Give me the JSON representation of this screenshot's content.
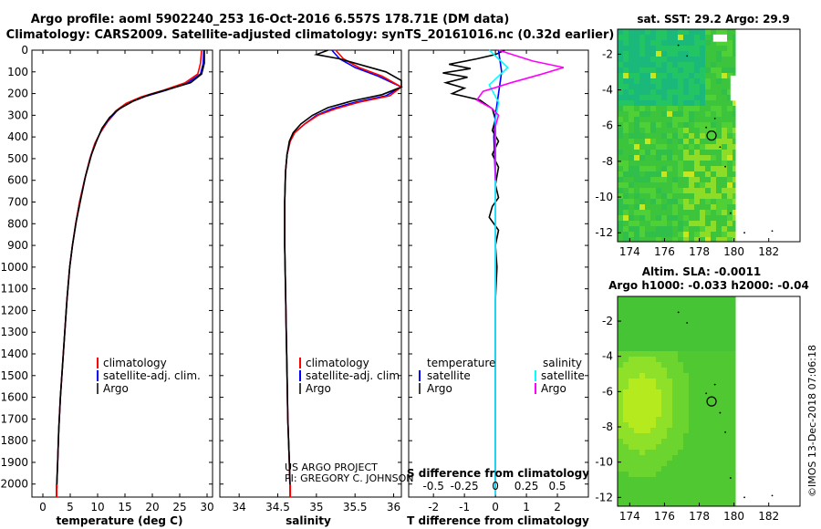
{
  "titles": {
    "line1": "Argo profile: aoml 5902240_253 16-Oct-2016 6.557S 178.71E (DM data)",
    "line2": "Climatology: CARS2009. Satellite-adjusted climatology: synTS_20161016.nc (0.32d earlier)"
  },
  "colors": {
    "climatology": "#ff0000",
    "satellite": "#0000ff",
    "argo": "#000000",
    "sat_sal": "#00ffff",
    "argo_sal": "#ff00ff"
  },
  "chart_data": [
    {
      "type": "line",
      "name": "temperature",
      "xlabel": "temperature (deg C)",
      "xlim": [
        -2,
        31
      ],
      "xticks": [
        0,
        5,
        10,
        15,
        20,
        25,
        30
      ],
      "ylim": [
        0,
        2060
      ],
      "yticks": [
        0,
        100,
        200,
        300,
        400,
        500,
        600,
        700,
        800,
        900,
        1000,
        1100,
        1200,
        1300,
        1400,
        1500,
        1600,
        1700,
        1800,
        1900,
        2000
      ],
      "legend": [
        "climatology",
        "satellite-adj. clim.",
        "Argo"
      ],
      "series": [
        {
          "name": "satellite-adj. clim.",
          "points": [
            [
              29.4,
              0
            ],
            [
              29.3,
              60
            ],
            [
              28.8,
              110
            ],
            [
              26.5,
              150
            ],
            [
              22.5,
              185
            ],
            [
              18.5,
              215
            ],
            [
              15.5,
              245
            ],
            [
              13.5,
              280
            ],
            [
              11.8,
              330
            ],
            [
              10.5,
              380
            ],
            [
              9.5,
              430
            ],
            [
              8.6,
              500
            ],
            [
              7.6,
              600
            ],
            [
              6.7,
              700
            ],
            [
              6.0,
              800
            ],
            [
              5.4,
              900
            ],
            [
              4.9,
              1000
            ],
            [
              4.4,
              1150
            ],
            [
              4.0,
              1300
            ],
            [
              3.6,
              1450
            ],
            [
              3.2,
              1600
            ],
            [
              2.9,
              1750
            ],
            [
              2.7,
              1900
            ],
            [
              2.5,
              2050
            ]
          ]
        },
        {
          "name": "climatology",
          "points": [
            [
              29.0,
              0
            ],
            [
              28.8,
              60
            ],
            [
              28.3,
              110
            ],
            [
              26.0,
              150
            ],
            [
              22.0,
              185
            ],
            [
              18.0,
              215
            ],
            [
              15.2,
              245
            ],
            [
              13.3,
              280
            ],
            [
              11.7,
              330
            ],
            [
              10.5,
              380
            ],
            [
              9.5,
              430
            ],
            [
              8.6,
              500
            ],
            [
              7.6,
              600
            ],
            [
              6.7,
              700
            ],
            [
              6.0,
              800
            ],
            [
              5.4,
              900
            ],
            [
              4.9,
              1000
            ],
            [
              4.4,
              1150
            ],
            [
              4.0,
              1300
            ],
            [
              3.6,
              1450
            ],
            [
              3.2,
              1600
            ],
            [
              2.9,
              1750
            ],
            [
              2.7,
              1900
            ],
            [
              2.5,
              2050
            ]
          ]
        },
        {
          "name": "Argo",
          "points": [
            [
              29.5,
              0
            ],
            [
              29.5,
              60
            ],
            [
              29.0,
              110
            ],
            [
              27.0,
              150
            ],
            [
              23.0,
              180
            ],
            [
              19.5,
              205
            ],
            [
              16.5,
              235
            ],
            [
              14.0,
              270
            ],
            [
              12.2,
              310
            ],
            [
              10.8,
              360
            ],
            [
              9.8,
              420
            ],
            [
              8.9,
              480
            ],
            [
              7.8,
              580
            ],
            [
              6.9,
              690
            ],
            [
              6.1,
              790
            ],
            [
              5.4,
              900
            ],
            [
              4.9,
              1000
            ],
            [
              4.4,
              1150
            ],
            [
              4.0,
              1300
            ],
            [
              3.6,
              1450
            ],
            [
              3.2,
              1600
            ],
            [
              2.9,
              1750
            ],
            [
              2.7,
              1900
            ],
            [
              2.5,
              2020
            ]
          ]
        }
      ]
    },
    {
      "type": "line",
      "name": "salinity",
      "xlabel": "salinity",
      "xlim": [
        33.75,
        36.1
      ],
      "xticks": [
        34,
        34.5,
        35,
        35.5,
        36
      ],
      "ylim": [
        0,
        2060
      ],
      "legend": [
        "climatology",
        "satellite-adj. clim.",
        "Argo"
      ],
      "credit": [
        "US ARGO PROJECT",
        "PI: GREGORY C. JOHNSON"
      ],
      "series": [
        {
          "name": "satellite-adj. clim.",
          "points": [
            [
              35.2,
              0
            ],
            [
              35.3,
              40
            ],
            [
              35.5,
              80
            ],
            [
              35.8,
              120
            ],
            [
              36.1,
              170
            ],
            [
              35.9,
              210
            ],
            [
              35.5,
              240
            ],
            [
              35.2,
              270
            ],
            [
              35.0,
              300
            ],
            [
              34.85,
              340
            ],
            [
              34.72,
              380
            ],
            [
              34.66,
              420
            ],
            [
              34.62,
              480
            ],
            [
              34.6,
              560
            ],
            [
              34.59,
              700
            ],
            [
              34.59,
              900
            ],
            [
              34.6,
              1100
            ],
            [
              34.61,
              1300
            ],
            [
              34.62,
              1500
            ],
            [
              34.63,
              1700
            ],
            [
              34.65,
              1900
            ],
            [
              34.66,
              2050
            ]
          ]
        },
        {
          "name": "climatology",
          "points": [
            [
              35.25,
              0
            ],
            [
              35.35,
              40
            ],
            [
              35.55,
              80
            ],
            [
              35.85,
              120
            ],
            [
              36.1,
              170
            ],
            [
              35.95,
              210
            ],
            [
              35.55,
              240
            ],
            [
              35.25,
              270
            ],
            [
              35.02,
              300
            ],
            [
              34.85,
              340
            ],
            [
              34.72,
              380
            ],
            [
              34.66,
              420
            ],
            [
              34.62,
              480
            ],
            [
              34.6,
              560
            ],
            [
              34.59,
              700
            ],
            [
              34.59,
              900
            ],
            [
              34.6,
              1100
            ],
            [
              34.61,
              1300
            ],
            [
              34.62,
              1500
            ],
            [
              34.63,
              1700
            ],
            [
              34.65,
              1900
            ],
            [
              34.66,
              2050
            ]
          ]
        },
        {
          "name": "Argo",
          "points": [
            [
              35.15,
              0
            ],
            [
              35.0,
              20
            ],
            [
              35.3,
              40
            ],
            [
              35.6,
              70
            ],
            [
              35.9,
              100
            ],
            [
              36.1,
              140
            ],
            [
              36.1,
              170
            ],
            [
              35.85,
              205
            ],
            [
              35.45,
              235
            ],
            [
              35.15,
              265
            ],
            [
              34.95,
              300
            ],
            [
              34.8,
              340
            ],
            [
              34.7,
              380
            ],
            [
              34.65,
              420
            ],
            [
              34.62,
              480
            ],
            [
              34.6,
              560
            ],
            [
              34.59,
              700
            ],
            [
              34.59,
              900
            ],
            [
              34.6,
              1100
            ],
            [
              34.61,
              1300
            ],
            [
              34.62,
              1500
            ],
            [
              34.63,
              1700
            ],
            [
              34.65,
              1900
            ],
            [
              34.66,
              2020
            ]
          ]
        }
      ]
    },
    {
      "type": "line",
      "name": "difference",
      "xlabel": "T difference from climatology",
      "xlabel2": "S difference from climatology",
      "xlim": [
        -2.8,
        3.0
      ],
      "xticks": [
        -2,
        -1,
        0,
        1,
        2
      ],
      "sticks": [
        "-0.5",
        "-0.25",
        "0",
        "0.25",
        "0.5"
      ],
      "ylim": [
        0,
        2060
      ],
      "legend_left_title": "temperature",
      "legend_right_title": "salinity",
      "legend_left": [
        "satellite",
        "Argo"
      ],
      "legend_right": [
        "satellite",
        "Argo"
      ],
      "series": [
        {
          "name": "T Argo",
          "points": [
            [
              0.3,
              0
            ],
            [
              0.0,
              20
            ],
            [
              -0.6,
              40
            ],
            [
              -1.5,
              65
            ],
            [
              -0.8,
              85
            ],
            [
              -1.7,
              105
            ],
            [
              -0.9,
              125
            ],
            [
              -1.6,
              150
            ],
            [
              -1.0,
              175
            ],
            [
              -1.4,
              200
            ],
            [
              -0.5,
              230
            ],
            [
              -0.1,
              270
            ],
            [
              0.0,
              320
            ],
            [
              -0.1,
              370
            ],
            [
              0.1,
              420
            ],
            [
              -0.1,
              480
            ],
            [
              0.1,
              540
            ],
            [
              0.0,
              620
            ],
            [
              0.1,
              680
            ],
            [
              -0.1,
              720
            ],
            [
              -0.2,
              770
            ],
            [
              0.1,
              830
            ],
            [
              0.0,
              900
            ],
            [
              0.05,
              1000
            ],
            [
              0.0,
              1150
            ],
            [
              0.0,
              1400
            ],
            [
              0.0,
              1700
            ],
            [
              0.0,
              2020
            ]
          ]
        },
        {
          "name": "T satellite",
          "points": [
            [
              0.1,
              0
            ],
            [
              0.2,
              100
            ],
            [
              0.1,
              200
            ],
            [
              0.0,
              300
            ],
            [
              -0.05,
              400
            ],
            [
              0.0,
              600
            ],
            [
              0.0,
              900
            ],
            [
              0.0,
              1200
            ],
            [
              0.0,
              1500
            ],
            [
              0.0,
              1800
            ],
            [
              0.0,
              2050
            ]
          ]
        },
        {
          "name": "S satellite",
          "points": [
            [
              -0.2,
              0
            ],
            [
              0.4,
              80
            ],
            [
              -0.2,
              160
            ],
            [
              0.1,
              240
            ],
            [
              0.0,
              320
            ],
            [
              0.0,
              500
            ],
            [
              0.0,
              800
            ],
            [
              0.0,
              1200
            ],
            [
              0.0,
              1600
            ],
            [
              0.0,
              2050
            ]
          ]
        },
        {
          "name": "S Argo",
          "points": [
            [
              0.1,
              0
            ],
            [
              1.2,
              50
            ],
            [
              2.2,
              80
            ],
            [
              1.5,
              110
            ],
            [
              0.5,
              150
            ],
            [
              -0.4,
              190
            ],
            [
              -0.6,
              230
            ],
            [
              -0.1,
              270
            ],
            [
              0.1,
              300
            ],
            [
              0.0,
              350
            ],
            [
              0.0,
              450
            ],
            [
              0.0,
              600
            ]
          ]
        }
      ]
    }
  ],
  "maps": {
    "sst_title": "sat. SST: 29.2 Argo: 29.9",
    "sla_title1": "Altim. SLA: -0.0011",
    "sla_title2": "Argo h1000: -0.033 h2000: -0.04",
    "xticks": [
      "174",
      "176",
      "178",
      "180",
      "182"
    ],
    "yticks": [
      "-2",
      "-4",
      "-6",
      "-8",
      "-10",
      "-12"
    ],
    "xlim": [
      173.3,
      183.8
    ],
    "ylim": [
      -12.5,
      -0.6
    ],
    "float_lon": 178.71,
    "float_lat": -6.557
  },
  "watermark": "©IMOS 13-Dec-2018 07:06:18"
}
